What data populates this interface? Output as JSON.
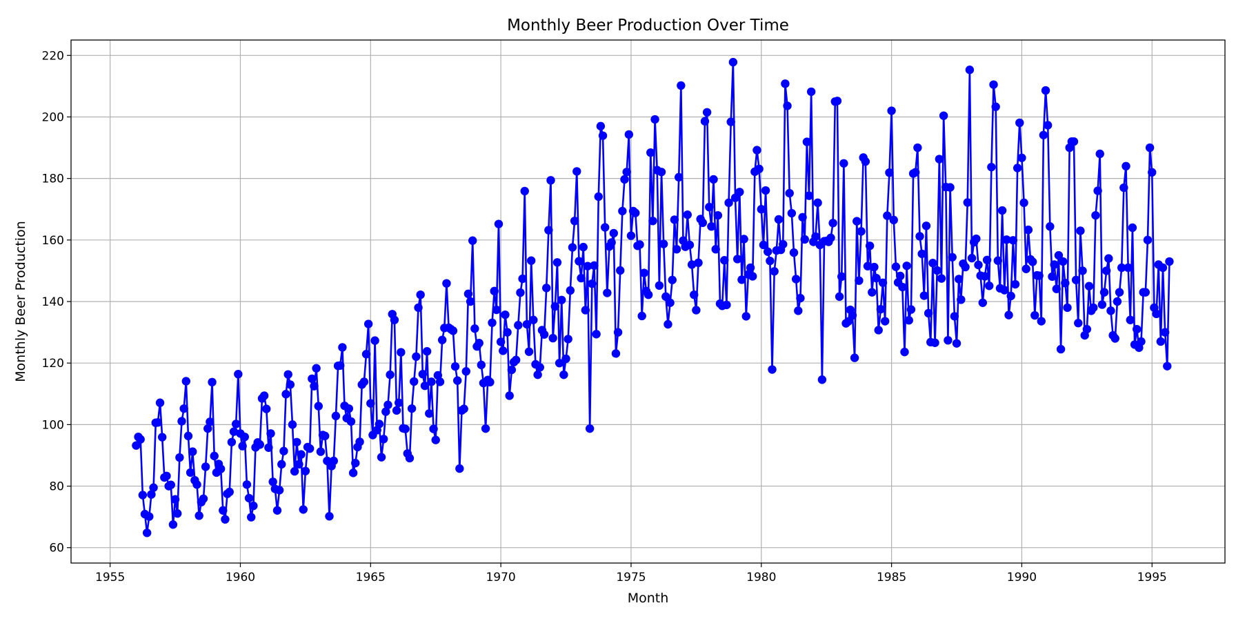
{
  "chart_data": {
    "type": "line",
    "title": "Monthly Beer Production Over Time",
    "xlabel": "Month",
    "ylabel": "Monthly Beer Production",
    "xlim": [
      1953.5,
      1997.8
    ],
    "ylim": [
      55,
      225
    ],
    "x_ticks": [
      1955,
      1960,
      1965,
      1970,
      1975,
      1980,
      1985,
      1990,
      1995
    ],
    "y_ticks": [
      60,
      80,
      100,
      120,
      140,
      160,
      180,
      200,
      220
    ],
    "grid": true,
    "legend": "none",
    "colors": {
      "series": "#0000ff",
      "grid": "#b0b0b0",
      "axes": "#000000"
    },
    "markers": "filled-circle",
    "series": [
      {
        "x_start": "1956-01",
        "frequency": "monthly",
        "values": [
          93.2,
          96.0,
          95.2,
          77.1,
          70.9,
          64.8,
          70.1,
          77.3,
          79.5,
          100.6,
          100.7,
          107.1,
          95.9,
          82.8,
          83.3,
          80.0,
          80.4,
          67.5,
          75.7,
          71.1,
          89.3,
          101.1,
          105.2,
          114.1,
          96.3,
          84.4,
          91.2,
          81.9,
          80.5,
          70.4,
          74.8,
          75.9,
          86.3,
          98.7,
          100.9,
          113.8,
          89.8,
          84.4,
          87.2,
          85.6,
          72.1,
          69.2,
          77.5,
          78.1,
          94.3,
          97.7,
          100.2,
          116.4,
          97.1,
          93.0,
          96.0,
          80.5,
          76.1,
          69.9,
          73.6,
          92.6,
          94.2,
          93.5,
          108.5,
          109.4,
          105.1,
          92.5,
          97.1,
          81.4,
          79.1,
          72.1,
          78.7,
          87.1,
          91.4,
          109.9,
          116.3,
          113.0,
          100.0,
          84.8,
          94.3,
          87.1,
          90.3,
          72.4,
          84.9,
          92.7,
          92.2,
          114.9,
          112.5,
          118.3,
          106.0,
          91.2,
          96.6,
          96.3,
          88.2,
          70.2,
          86.5,
          88.2,
          102.8,
          119.1,
          119.2,
          125.1,
          106.1,
          102.1,
          105.2,
          101.0,
          84.3,
          87.5,
          92.7,
          94.4,
          113.0,
          113.9,
          122.9,
          132.7,
          106.9,
          96.6,
          127.3,
          98.2,
          100.2,
          89.4,
          95.3,
          104.2,
          106.4,
          116.2,
          135.9,
          134.0,
          104.6,
          107.1,
          123.5,
          98.8,
          98.6,
          90.6,
          89.1,
          105.2,
          114.0,
          122.1,
          138.0,
          142.2,
          116.4,
          112.6,
          123.8,
          103.6,
          113.9,
          98.6,
          95.0,
          116.0,
          113.9,
          127.5,
          131.4,
          145.9,
          131.5,
          131.0,
          130.5,
          118.9,
          114.3,
          85.7,
          104.6,
          105.1,
          117.3,
          142.5,
          140.0,
          159.8,
          131.2,
          125.4,
          126.5,
          119.4,
          113.5,
          98.7,
          114.5,
          113.8,
          133.1,
          143.4,
          137.3,
          165.2,
          126.9,
          124.0,
          135.7,
          130.0,
          109.4,
          117.8,
          120.3,
          121.0,
          132.3,
          142.9,
          147.4,
          175.9,
          132.6,
          123.7,
          153.3,
          134.0,
          119.6,
          116.2,
          118.6,
          130.7,
          129.3,
          144.4,
          163.2,
          179.4,
          128.1,
          138.4,
          152.7,
          120.0,
          140.5,
          116.2,
          121.4,
          127.8,
          143.6,
          157.6,
          166.2,
          182.3,
          153.1,
          147.6,
          157.7,
          137.2,
          151.5,
          98.7,
          145.8,
          151.7,
          129.4,
          174.1,
          197.0,
          193.9,
          164.1,
          142.8,
          157.9,
          159.2,
          162.2,
          123.1,
          130.0,
          150.1,
          169.4,
          179.7,
          182.1,
          194.3,
          161.4,
          169.4,
          168.8,
          158.1,
          158.5,
          135.3,
          149.3,
          143.4,
          142.2,
          188.4,
          166.2,
          199.2,
          182.7,
          145.2,
          182.1,
          158.7,
          141.6,
          132.6,
          139.6,
          147.0,
          166.6,
          157.0,
          180.4,
          210.2,
          159.8,
          157.8,
          168.2,
          158.4,
          152.0,
          142.2,
          137.2,
          152.6,
          166.8,
          165.6,
          198.6,
          201.5,
          170.7,
          164.4,
          179.7,
          157.0,
          168.0,
          139.3,
          138.6,
          153.4,
          138.9,
          172.1,
          198.4,
          217.8,
          173.7,
          153.8,
          175.6,
          147.1,
          160.3,
          135.2,
          148.8,
          151.0,
          148.2,
          182.2,
          189.2,
          183.1,
          170.0,
          158.4,
          176.1,
          156.2,
          153.2,
          117.9,
          149.8,
          156.6,
          166.7,
          156.8,
          158.6,
          210.8,
          203.6,
          175.2,
          168.7,
          155.9,
          147.3,
          137.0,
          141.1,
          167.4,
          160.2,
          191.9,
          174.4,
          208.2,
          159.4,
          161.1,
          172.1,
          158.4,
          114.6,
          159.6,
          159.7,
          159.4,
          160.7,
          165.5,
          205.0,
          205.2,
          141.6,
          148.1,
          184.9,
          132.9,
          133.5,
          137.3,
          135.5,
          121.7,
          166.1,
          146.8,
          162.8,
          186.8,
          185.5,
          151.5,
          158.1,
          143.0,
          151.2,
          147.6,
          130.7,
          137.5,
          146.1,
          133.6,
          167.9,
          181.9,
          202.0,
          166.5,
          151.3,
          146.2,
          148.3,
          144.7,
          123.6,
          151.6,
          133.9,
          137.4,
          181.6,
          182.0,
          190.0,
          161.2,
          155.5,
          141.9,
          164.6,
          136.2,
          126.8,
          152.5,
          126.6,
          150.1,
          186.3,
          147.5,
          200.4,
          177.2,
          127.4,
          177.1,
          154.4,
          135.2,
          126.4,
          147.3,
          140.6,
          152.3,
          151.2,
          172.2,
          215.3,
          154.1,
          159.3,
          160.4,
          151.9,
          148.4,
          139.6,
          148.2,
          153.5,
          145.1,
          183.7,
          210.5,
          203.3,
          153.3,
          144.3,
          169.6,
          143.7,
          160.1,
          135.6,
          141.8,
          159.9,
          145.6,
          183.4,
          198.1,
          186.7,
          172.1,
          150.6,
          163.3,
          153.7,
          152.9,
          135.5,
          148.5,
          148.4,
          133.6,
          194.1,
          208.6,
          197.3,
          164.4,
          148.1,
          152.0,
          144.1,
          155.0,
          124.5,
          153.0,
          146.0,
          138.0,
          190.0,
          192.0,
          192.0,
          147.0,
          133.0,
          163.0,
          150.0,
          129.0,
          131.0,
          145.0,
          137.0,
          138.0,
          168.0,
          176.0,
          188.0,
          139.0,
          143.0,
          150.0,
          154.0,
          137.0,
          129.0,
          128.0,
          140.0,
          143.0,
          151.0,
          177.0,
          184.0,
          151.0,
          134.0,
          164.0,
          126.0,
          131.0,
          125.0,
          127.0,
          143.0,
          143.0,
          160.0,
          190.0,
          182.0,
          138.0,
          136.0,
          152.0,
          127.0,
          151.0,
          130.0,
          119.0,
          153.0
        ]
      }
    ]
  }
}
